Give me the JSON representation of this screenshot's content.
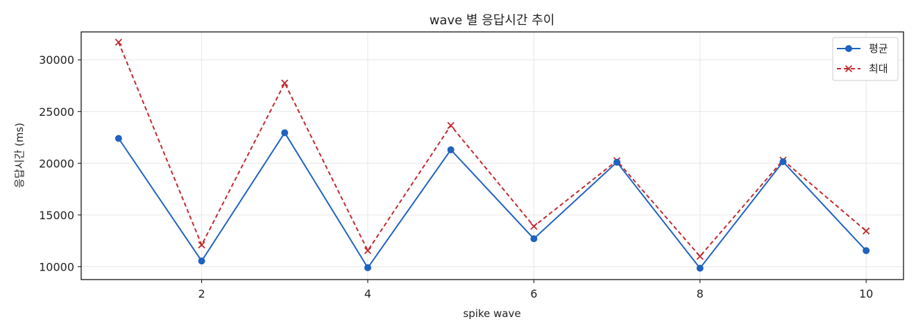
{
  "chart_data": {
    "type": "line",
    "title": "wave 별 응답시간 추이",
    "xlabel": "spike wave",
    "ylabel": "응답시간 (ms)",
    "x": [
      1,
      2,
      3,
      4,
      5,
      6,
      7,
      8,
      9,
      10
    ],
    "xlim": [
      0.55,
      10.45
    ],
    "ylim": [
      8750,
      32700
    ],
    "xticks": [
      2,
      4,
      6,
      8,
      10
    ],
    "yticks": [
      10000,
      15000,
      20000,
      25000,
      30000
    ],
    "grid": true,
    "legend_position": "top-right",
    "series": [
      {
        "name": "평균",
        "color": "#1f62c0",
        "line_style": "solid",
        "marker": "circle",
        "values": [
          22400,
          10550,
          22950,
          9900,
          21300,
          12700,
          20100,
          9850,
          20150,
          11550
        ]
      },
      {
        "name": "최대",
        "color": "#c0282d",
        "line_style": "dashed",
        "marker": "x",
        "values": [
          31700,
          12100,
          27750,
          11550,
          23650,
          13900,
          20250,
          11000,
          20300,
          13450
        ]
      }
    ]
  }
}
